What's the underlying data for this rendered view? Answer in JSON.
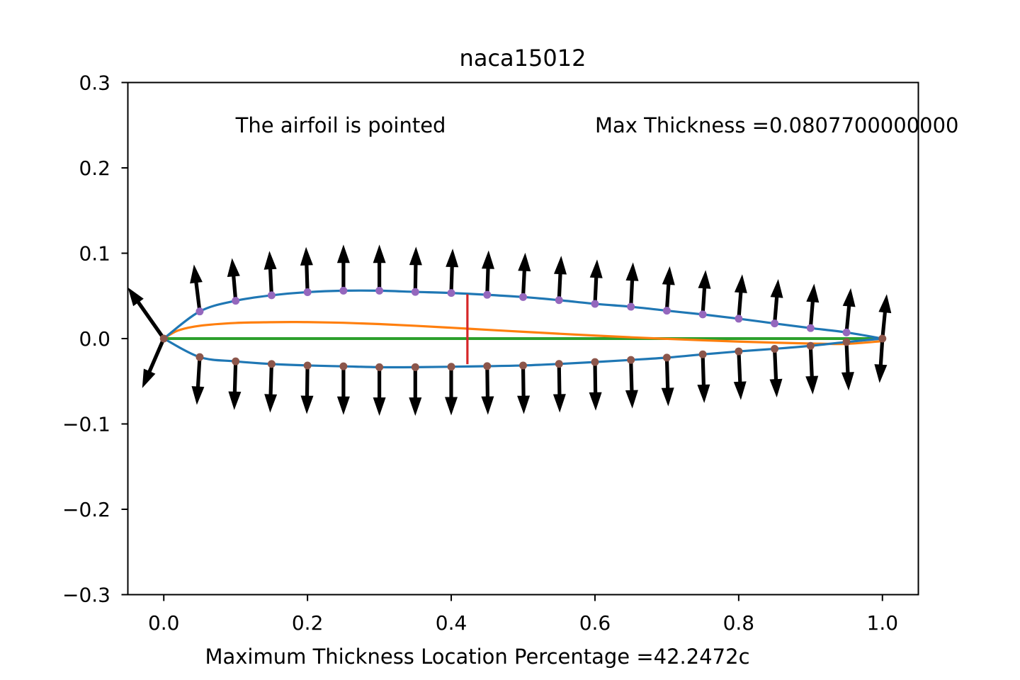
{
  "chart_data": {
    "type": "line",
    "title": "naca15012",
    "xlabel": "Maximum Thickness Location Percentage =42.2472c",
    "ylabel": "",
    "xlim": [
      -0.05,
      1.05
    ],
    "ylim": [
      -0.3,
      0.3
    ],
    "xticks": [
      0.0,
      0.2,
      0.4,
      0.6,
      0.8,
      1.0
    ],
    "xtick_labels": [
      "0.0",
      "0.2",
      "0.4",
      "0.6",
      "0.8",
      "1.0"
    ],
    "yticks": [
      0.3,
      0.2,
      0.1,
      0.0,
      -0.1,
      -0.2,
      -0.3
    ],
    "ytick_labels": [
      "0.3",
      "0.2",
      "0.1",
      "0.0",
      "−0.1",
      "−0.2",
      "−0.3"
    ],
    "grid": false,
    "annotations": [
      {
        "text": "The airfoil is pointed",
        "x": 0.1,
        "y": 0.25
      },
      {
        "text": "Max Thickness =0.0807700000000",
        "x": 0.6,
        "y": 0.25
      }
    ],
    "colors": {
      "surface": "#1f77b4",
      "camber": "#ff7f0e",
      "chord": "#2ca02c",
      "max_thickness": "#d62728",
      "upper_points": "#9467bd",
      "lower_points": "#8c564b",
      "normals": "#000000"
    },
    "max_thickness_line": {
      "x": 0.4225,
      "y_top": 0.052,
      "y_bottom": -0.03
    },
    "series": [
      {
        "x": [
          0.0,
          0.05,
          0.1,
          0.15,
          0.2,
          0.25,
          0.3,
          0.35,
          0.4,
          0.45,
          0.5,
          0.55,
          0.6,
          0.65,
          0.7,
          0.75,
          0.8,
          0.85,
          0.9,
          0.95,
          1.0
        ],
        "y": [
          0.0,
          0.0318,
          0.0443,
          0.0507,
          0.0544,
          0.0561,
          0.0561,
          0.0547,
          0.0534,
          0.0513,
          0.0487,
          0.045,
          0.0407,
          0.0373,
          0.0327,
          0.0283,
          0.0233,
          0.0177,
          0.0123,
          0.0072,
          0.0
        ]
      },
      {
        "x": [
          0.0,
          0.05,
          0.1,
          0.15,
          0.2,
          0.25,
          0.3,
          0.35,
          0.4,
          0.45,
          0.5,
          0.55,
          0.6,
          0.65,
          0.7,
          0.75,
          0.8,
          0.85,
          0.9,
          0.95,
          1.0
        ],
        "y": [
          0.0,
          -0.0217,
          -0.0267,
          -0.0298,
          -0.0315,
          -0.0325,
          -0.0335,
          -0.0335,
          -0.033,
          -0.0323,
          -0.0315,
          -0.0297,
          -0.0275,
          -0.025,
          -0.0223,
          -0.0185,
          -0.015,
          -0.012,
          -0.0085,
          -0.004,
          0.0
        ]
      },
      {
        "x": [
          0.0,
          0.02,
          0.05,
          0.1,
          0.15,
          0.18,
          0.2,
          0.25,
          0.3,
          0.35,
          0.4,
          0.45,
          0.5,
          0.55,
          0.6,
          0.65,
          0.7,
          0.75,
          0.8,
          0.85,
          0.9,
          0.95,
          1.0
        ],
        "y": [
          0.0,
          0.0095,
          0.015,
          0.0183,
          0.0192,
          0.0194,
          0.0193,
          0.0185,
          0.017,
          0.015,
          0.0127,
          0.0103,
          0.008,
          0.0057,
          0.0035,
          0.0015,
          -0.0003,
          -0.002,
          -0.0035,
          -0.0048,
          -0.0058,
          -0.0062,
          -0.003
        ]
      },
      {
        "x": [
          0.0,
          1.0
        ],
        "y": [
          0.0,
          0.0
        ]
      }
    ],
    "upper_points": {
      "x": [
        0.05,
        0.1,
        0.15,
        0.2,
        0.25,
        0.3,
        0.35,
        0.4,
        0.45,
        0.5,
        0.55,
        0.6,
        0.65,
        0.7,
        0.75,
        0.8,
        0.85,
        0.9,
        0.95
      ],
      "y": [
        0.0318,
        0.0443,
        0.0507,
        0.0544,
        0.0561,
        0.0561,
        0.0547,
        0.0534,
        0.0513,
        0.0487,
        0.045,
        0.0407,
        0.0373,
        0.0327,
        0.0283,
        0.0233,
        0.0177,
        0.0123,
        0.0072
      ]
    },
    "lower_points": {
      "x": [
        0.0,
        0.05,
        0.1,
        0.15,
        0.2,
        0.25,
        0.3,
        0.35,
        0.4,
        0.45,
        0.5,
        0.55,
        0.6,
        0.65,
        0.7,
        0.75,
        0.8,
        0.85,
        0.9,
        0.95,
        1.0
      ],
      "y": [
        0.0,
        -0.0217,
        -0.0267,
        -0.0298,
        -0.0315,
        -0.0325,
        -0.0335,
        -0.0335,
        -0.033,
        -0.0323,
        -0.0315,
        -0.0297,
        -0.0275,
        -0.025,
        -0.0223,
        -0.0185,
        -0.015,
        -0.012,
        -0.0085,
        -0.004,
        0.0
      ]
    },
    "normals_upper": [
      {
        "x": 0.0,
        "y": 0.0,
        "dx": -0.05,
        "dy": 0.06
      },
      {
        "x": 0.05,
        "y": 0.0318,
        "dx": -0.008,
        "dy": 0.055
      },
      {
        "x": 0.1,
        "y": 0.0443,
        "dx": -0.005,
        "dy": 0.05
      },
      {
        "x": 0.15,
        "y": 0.0507,
        "dx": -0.003,
        "dy": 0.052
      },
      {
        "x": 0.2,
        "y": 0.0544,
        "dx": -0.002,
        "dy": 0.053
      },
      {
        "x": 0.25,
        "y": 0.0561,
        "dx": 0.0,
        "dy": 0.054
      },
      {
        "x": 0.3,
        "y": 0.0561,
        "dx": 0.0,
        "dy": 0.054
      },
      {
        "x": 0.35,
        "y": 0.0547,
        "dx": 0.001,
        "dy": 0.053
      },
      {
        "x": 0.4,
        "y": 0.0534,
        "dx": 0.002,
        "dy": 0.052
      },
      {
        "x": 0.45,
        "y": 0.0513,
        "dx": 0.002,
        "dy": 0.052
      },
      {
        "x": 0.5,
        "y": 0.0487,
        "dx": 0.003,
        "dy": 0.052
      },
      {
        "x": 0.55,
        "y": 0.045,
        "dx": 0.003,
        "dy": 0.052
      },
      {
        "x": 0.6,
        "y": 0.0407,
        "dx": 0.003,
        "dy": 0.052
      },
      {
        "x": 0.65,
        "y": 0.0373,
        "dx": 0.003,
        "dy": 0.052
      },
      {
        "x": 0.7,
        "y": 0.0327,
        "dx": 0.004,
        "dy": 0.052
      },
      {
        "x": 0.75,
        "y": 0.0283,
        "dx": 0.004,
        "dy": 0.052
      },
      {
        "x": 0.8,
        "y": 0.0233,
        "dx": 0.005,
        "dy": 0.052
      },
      {
        "x": 0.85,
        "y": 0.0177,
        "dx": 0.005,
        "dy": 0.052
      },
      {
        "x": 0.9,
        "y": 0.0123,
        "dx": 0.005,
        "dy": 0.052
      },
      {
        "x": 0.95,
        "y": 0.0072,
        "dx": 0.006,
        "dy": 0.052
      },
      {
        "x": 1.0,
        "y": 0.0,
        "dx": 0.006,
        "dy": 0.052
      }
    ],
    "normals_lower": [
      {
        "x": 0.0,
        "y": 0.0,
        "dx": -0.03,
        "dy": -0.058
      },
      {
        "x": 0.05,
        "y": -0.0217,
        "dx": -0.004,
        "dy": -0.056
      },
      {
        "x": 0.1,
        "y": -0.0267,
        "dx": -0.002,
        "dy": -0.057
      },
      {
        "x": 0.15,
        "y": -0.0298,
        "dx": -0.002,
        "dy": -0.057
      },
      {
        "x": 0.2,
        "y": -0.0315,
        "dx": -0.001,
        "dy": -0.057
      },
      {
        "x": 0.25,
        "y": -0.0325,
        "dx": 0.0,
        "dy": -0.057
      },
      {
        "x": 0.3,
        "y": -0.0335,
        "dx": 0.0,
        "dy": -0.057
      },
      {
        "x": 0.35,
        "y": -0.0335,
        "dx": 0.0,
        "dy": -0.057
      },
      {
        "x": 0.4,
        "y": -0.033,
        "dx": 0.0,
        "dy": -0.057
      },
      {
        "x": 0.45,
        "y": -0.0323,
        "dx": 0.001,
        "dy": -0.057
      },
      {
        "x": 0.5,
        "y": -0.0315,
        "dx": 0.001,
        "dy": -0.057
      },
      {
        "x": 0.55,
        "y": -0.0297,
        "dx": 0.001,
        "dy": -0.057
      },
      {
        "x": 0.6,
        "y": -0.0275,
        "dx": 0.001,
        "dy": -0.057
      },
      {
        "x": 0.65,
        "y": -0.025,
        "dx": 0.002,
        "dy": -0.057
      },
      {
        "x": 0.7,
        "y": -0.0223,
        "dx": 0.002,
        "dy": -0.057
      },
      {
        "x": 0.75,
        "y": -0.0185,
        "dx": 0.002,
        "dy": -0.057
      },
      {
        "x": 0.8,
        "y": -0.015,
        "dx": 0.003,
        "dy": -0.057
      },
      {
        "x": 0.85,
        "y": -0.012,
        "dx": 0.003,
        "dy": -0.057
      },
      {
        "x": 0.9,
        "y": -0.0085,
        "dx": 0.003,
        "dy": -0.057
      },
      {
        "x": 0.95,
        "y": -0.004,
        "dx": 0.003,
        "dy": -0.057
      },
      {
        "x": 1.0,
        "y": 0.0,
        "dx": -0.004,
        "dy": -0.052
      }
    ]
  }
}
